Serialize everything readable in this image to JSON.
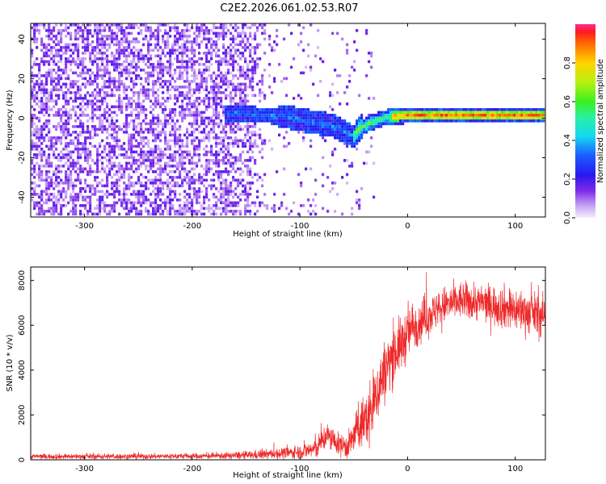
{
  "title": "C2E2.2026.061.02.53.R07",
  "colors": {
    "axis": "#000000",
    "snr_line": "#ee2a2a",
    "background": "#ffffff"
  },
  "chart_data": [
    {
      "type": "heatmap",
      "name": "spectrogram",
      "xlabel": "Height of straight line (km)",
      "ylabel": "Frequency (Hz)",
      "xlim": [
        -350,
        128
      ],
      "ylim": [
        -50,
        48
      ],
      "xticks": [
        -300,
        -200,
        -100,
        0,
        100
      ],
      "yticks": [
        -40,
        -20,
        0,
        20,
        40
      ],
      "description_values": {
        "noise_region_x": [
          -350,
          -150
        ],
        "signal_onset_x": -170,
        "carrier_track": [
          {
            "x": -170,
            "y": 2
          },
          {
            "x": -150,
            "y": 2
          },
          {
            "x": -130,
            "y": 1
          },
          {
            "x": -110,
            "y": 0
          },
          {
            "x": -90,
            "y": -2
          },
          {
            "x": -70,
            "y": -4
          },
          {
            "x": -55,
            "y": -8
          },
          {
            "x": -50,
            "y": -10
          },
          {
            "x": -45,
            "y": -6
          },
          {
            "x": -35,
            "y": -3
          },
          {
            "x": -20,
            "y": 0
          },
          {
            "x": 0,
            "y": 1
          },
          {
            "x": 50,
            "y": 1
          },
          {
            "x": 100,
            "y": 1
          },
          {
            "x": 128,
            "y": 1
          }
        ]
      },
      "colorbar": {
        "label": "Normalized spectral amplitude",
        "range": [
          0,
          1
        ],
        "ticks": [
          "0.0",
          "0.2",
          "0.4",
          "0.6",
          "0.8"
        ],
        "tick_values": [
          0.0,
          0.2,
          0.4,
          0.6,
          0.8
        ]
      }
    },
    {
      "type": "line",
      "name": "snr",
      "xlabel": "Height of straight line (km)",
      "ylabel": "SNR (10 * v/v)",
      "xlim": [
        -350,
        128
      ],
      "ylim": [
        0,
        8600
      ],
      "xticks": [
        -300,
        -200,
        -100,
        0,
        100
      ],
      "yticks": [
        0,
        2000,
        4000,
        6000,
        8000
      ],
      "series": [
        {
          "name": "SNR",
          "envelope": [
            {
              "x": -350,
              "mean": 150,
              "spread": 100
            },
            {
              "x": -250,
              "mean": 150,
              "spread": 100
            },
            {
              "x": -180,
              "mean": 170,
              "spread": 110
            },
            {
              "x": -150,
              "mean": 200,
              "spread": 150
            },
            {
              "x": -120,
              "mean": 280,
              "spread": 200
            },
            {
              "x": -100,
              "mean": 350,
              "spread": 250
            },
            {
              "x": -85,
              "mean": 500,
              "spread": 400
            },
            {
              "x": -75,
              "mean": 1100,
              "spread": 500
            },
            {
              "x": -65,
              "mean": 700,
              "spread": 400
            },
            {
              "x": -55,
              "mean": 600,
              "spread": 500
            },
            {
              "x": -45,
              "mean": 1500,
              "spread": 800
            },
            {
              "x": -35,
              "mean": 2000,
              "spread": 1300
            },
            {
              "x": -25,
              "mean": 3500,
              "spread": 1200
            },
            {
              "x": -15,
              "mean": 4600,
              "spread": 1100
            },
            {
              "x": -5,
              "mean": 5200,
              "spread": 1000
            },
            {
              "x": 5,
              "mean": 6000,
              "spread": 900
            },
            {
              "x": 15,
              "mean": 6300,
              "spread": 800
            },
            {
              "x": 25,
              "mean": 6600,
              "spread": 700
            },
            {
              "x": 35,
              "mean": 6900,
              "spread": 700
            },
            {
              "x": 50,
              "mean": 7100,
              "spread": 700
            },
            {
              "x": 70,
              "mean": 7000,
              "spread": 700
            },
            {
              "x": 90,
              "mean": 6800,
              "spread": 800
            },
            {
              "x": 110,
              "mean": 6600,
              "spread": 800
            },
            {
              "x": 128,
              "mean": 6400,
              "spread": 800
            }
          ]
        }
      ]
    }
  ]
}
